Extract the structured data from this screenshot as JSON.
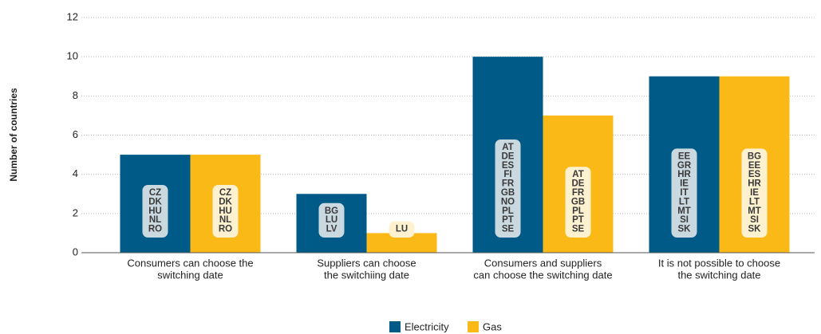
{
  "chart_data": {
    "type": "bar",
    "y_axis_label": "Number of countries",
    "categories": [
      [
        "Consumers can choose the",
        "switching date"
      ],
      [
        "Suppliers can choose",
        "the switchiing date"
      ],
      [
        "Consumers and suppliers",
        "can choose the switching date"
      ],
      [
        "It is not possible to choose",
        "the switching date"
      ]
    ],
    "series": [
      {
        "name": "Electricity",
        "color": "#005a87",
        "label_color": "#cad8e0",
        "values": [
          5,
          3,
          10,
          9
        ],
        "countries": [
          [
            "CZ",
            "DK",
            "HU",
            "NL",
            "RO"
          ],
          [
            "BG",
            "LU",
            "LV"
          ],
          [
            "AT",
            "DE",
            "ES",
            "FI",
            "FR",
            "GB",
            "NO",
            "PL",
            "PT",
            "SE"
          ],
          [
            "EE",
            "GR",
            "HR",
            "IE",
            "IT",
            "LT",
            "MT",
            "SI",
            "SK"
          ]
        ]
      },
      {
        "name": "Gas",
        "color": "#fbb917",
        "label_color": "#fdf1cf",
        "values": [
          5,
          1,
          7,
          9
        ],
        "countries": [
          [
            "CZ",
            "DK",
            "HU",
            "NL",
            "RO"
          ],
          [
            "LU"
          ],
          [
            "AT",
            "DE",
            "FR",
            "GB",
            "PL",
            "PT",
            "SE"
          ],
          [
            "BG",
            "EE",
            "ES",
            "HR",
            "IE",
            "LT",
            "MT",
            "SI",
            "SK"
          ]
        ]
      }
    ],
    "ylim": [
      0,
      12
    ],
    "yticks": [
      0,
      2,
      4,
      6,
      8,
      10,
      12
    ],
    "grid": true
  }
}
